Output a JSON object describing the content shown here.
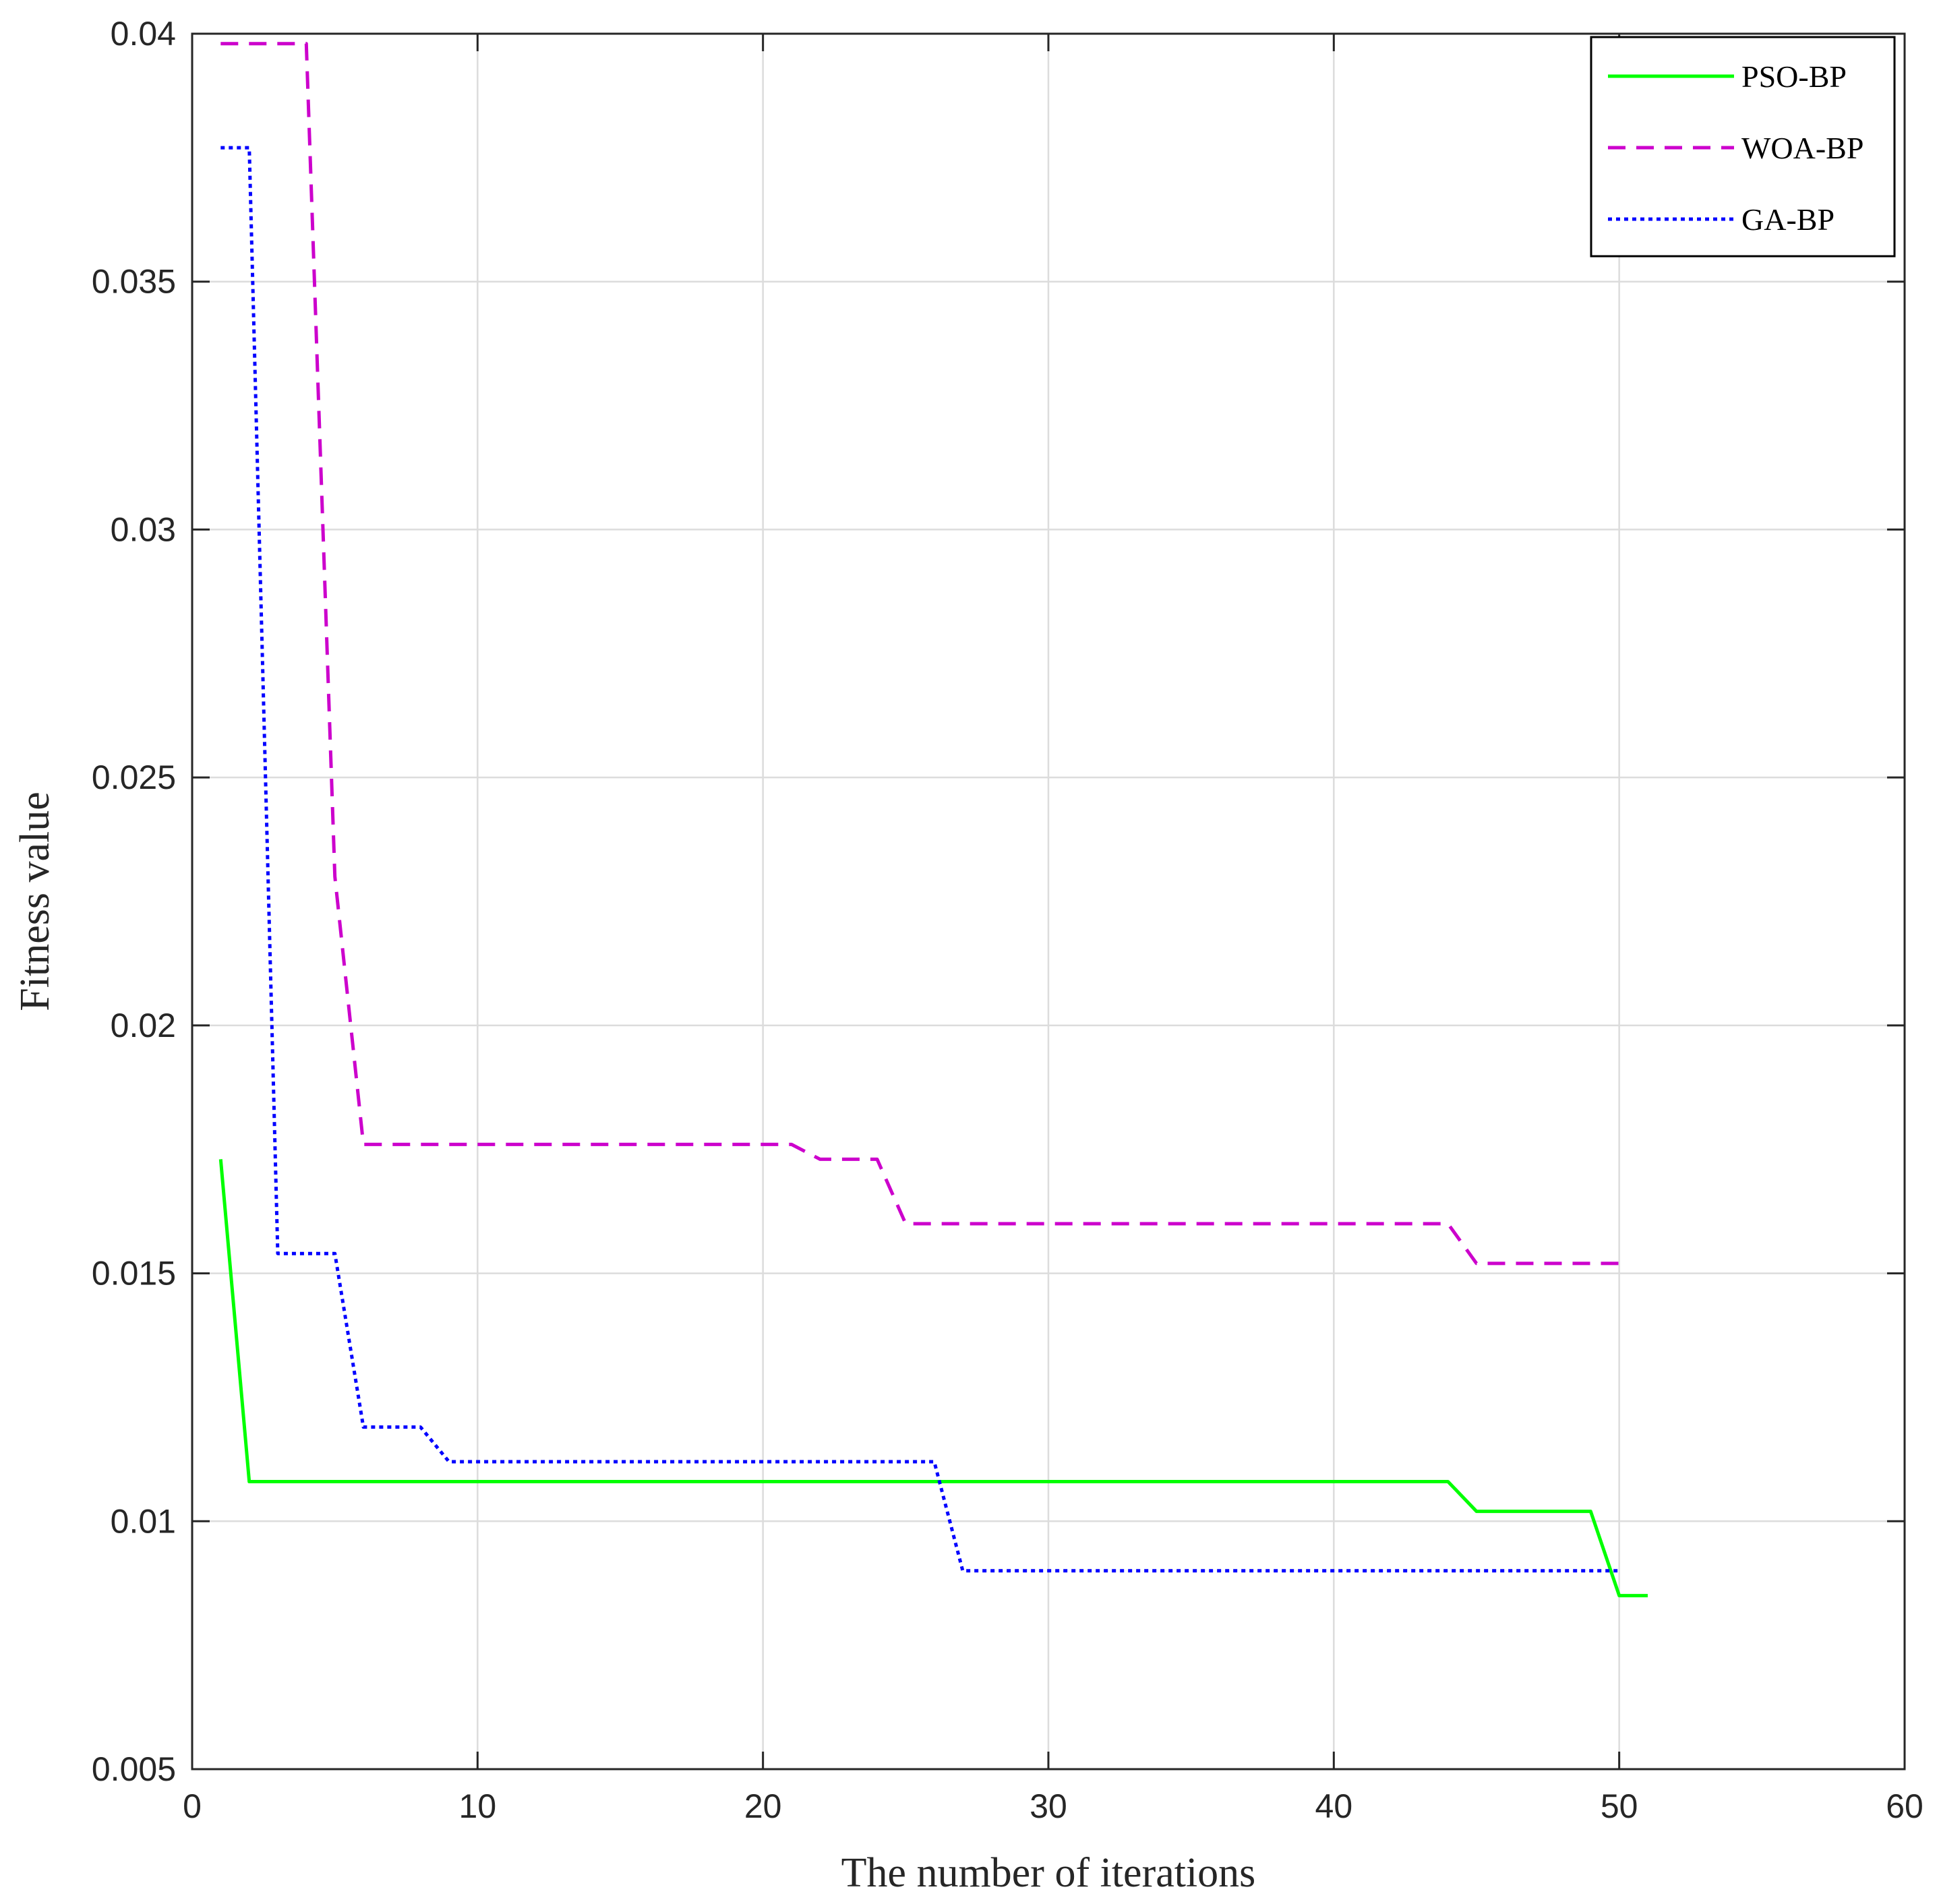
{
  "chart_data": {
    "type": "line",
    "xlabel": "The number of iterations",
    "ylabel": "Fitness value",
    "xlim": [
      0,
      60
    ],
    "ylim": [
      0.005,
      0.04
    ],
    "xticks": [
      0,
      10,
      20,
      30,
      40,
      50,
      60
    ],
    "yticks": [
      0.005,
      0.01,
      0.015,
      0.02,
      0.025,
      0.03,
      0.035,
      0.04
    ],
    "xtick_labels": [
      "0",
      "10",
      "20",
      "30",
      "40",
      "50",
      "60"
    ],
    "ytick_labels": [
      "0.005",
      "0.01",
      "0.015",
      "0.02",
      "0.025",
      "0.03",
      "0.035",
      "0.04"
    ],
    "grid": true,
    "legend_position": "top-right",
    "series": [
      {
        "name": "PSO-BP",
        "color": "#00ff00",
        "style": "solid",
        "x": [
          1,
          2,
          44,
          45,
          49,
          50,
          51
        ],
        "y": [
          0.0173,
          0.0108,
          0.0108,
          0.0102,
          0.0102,
          0.0085,
          0.0085
        ]
      },
      {
        "name": "WOA-BP",
        "color": "#cc00cc",
        "style": "dashed",
        "x": [
          1,
          4,
          5,
          6,
          21,
          22,
          24,
          25,
          44,
          45,
          50
        ],
        "y": [
          0.0398,
          0.0398,
          0.023,
          0.0176,
          0.0176,
          0.0173,
          0.0173,
          0.016,
          0.016,
          0.0152,
          0.0152
        ]
      },
      {
        "name": "GA-BP",
        "color": "#0000ff",
        "style": "dotted",
        "x": [
          1,
          2,
          3,
          5,
          6,
          8,
          9,
          26,
          27,
          50
        ],
        "y": [
          0.0377,
          0.0377,
          0.0154,
          0.0154,
          0.0119,
          0.0119,
          0.0112,
          0.0112,
          0.009,
          0.009
        ]
      }
    ]
  }
}
